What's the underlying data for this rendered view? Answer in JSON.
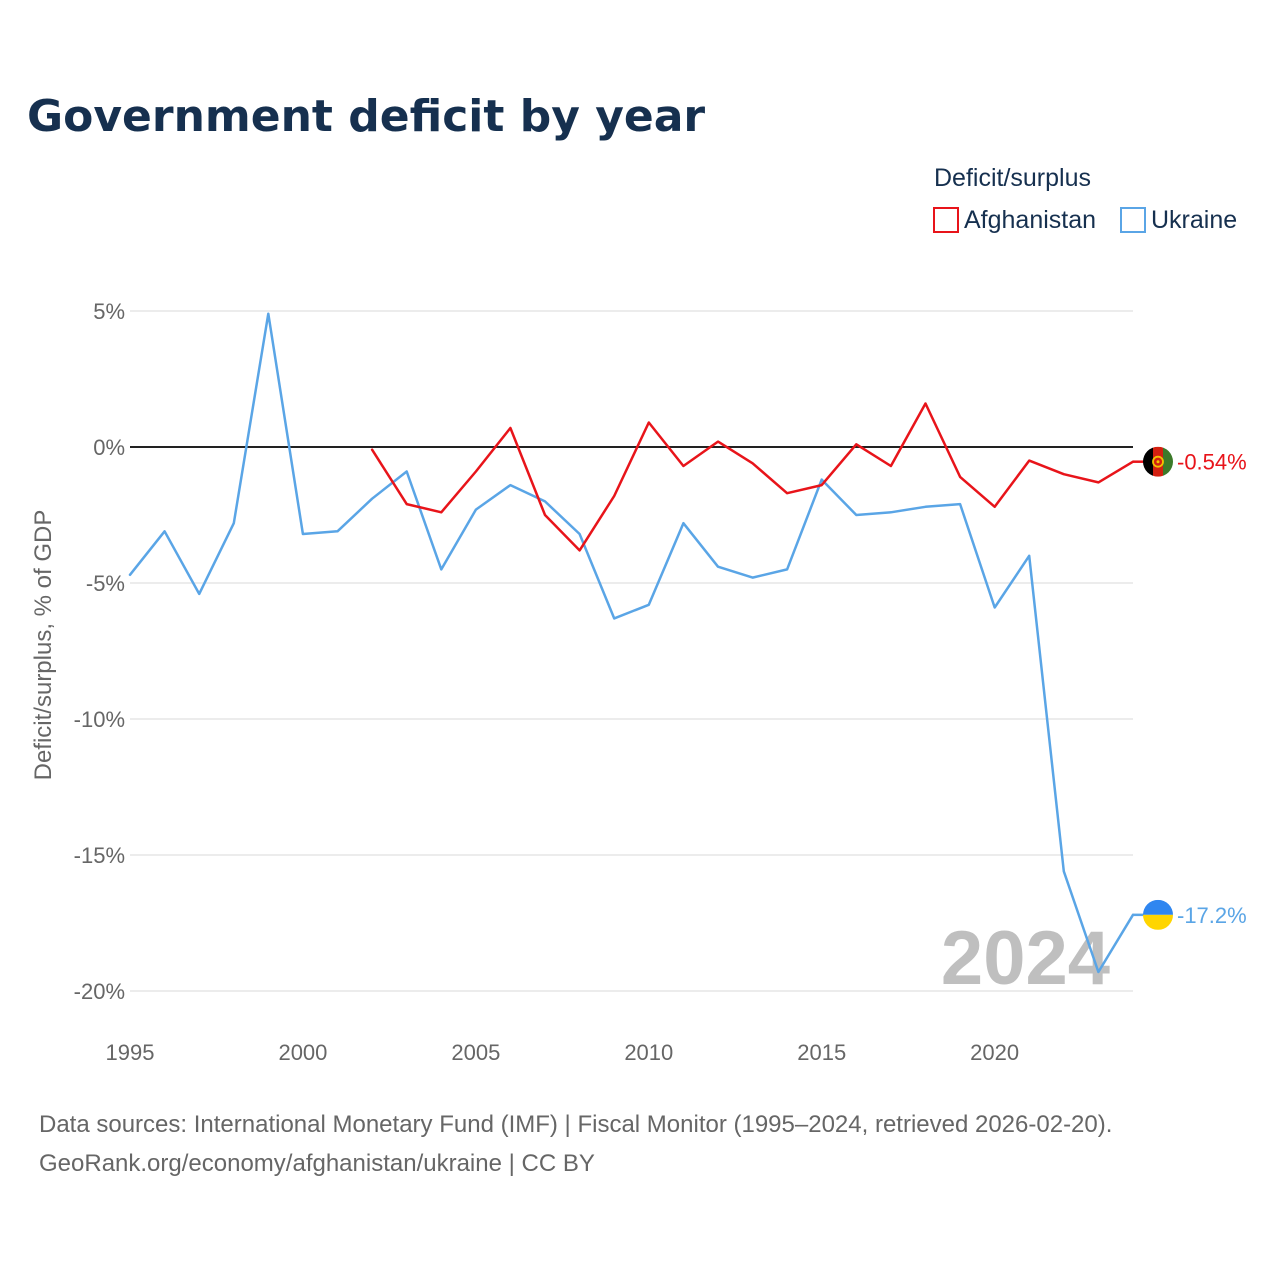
{
  "chart_data": {
    "type": "line",
    "title": "Government deficit by year",
    "legend_title": "Deficit/surplus",
    "legend_position": "top-right",
    "ylabel": "Deficit/surplus, % of GDP",
    "xlabel": "",
    "xlim": [
      1995,
      2024
    ],
    "ylim": [
      -20,
      5
    ],
    "x_ticks": [
      1995,
      2000,
      2005,
      2010,
      2015,
      2020
    ],
    "y_ticks": [
      5,
      0,
      -5,
      -10,
      -15,
      -20
    ],
    "y_tick_labels": [
      "5%",
      "0%",
      "-5%",
      "-10%",
      "-15%",
      "-20%"
    ],
    "grid": true,
    "zero_line": true,
    "highlight_year": "2024",
    "series": [
      {
        "name": "Afghanistan",
        "color": "#e8141a",
        "end_label": "-0.54%",
        "flag": "flag-afghanistan",
        "x": [
          2002,
          2003,
          2004,
          2005,
          2006,
          2007,
          2008,
          2009,
          2010,
          2011,
          2012,
          2013,
          2014,
          2015,
          2016,
          2017,
          2018,
          2019,
          2020,
          2021,
          2022,
          2023,
          2024
        ],
        "values": [
          -0.1,
          -2.1,
          -2.4,
          -0.9,
          0.7,
          -2.5,
          -3.8,
          -1.8,
          0.9,
          -0.7,
          0.2,
          -0.6,
          -1.7,
          -1.4,
          0.1,
          -0.7,
          1.6,
          -1.1,
          -2.2,
          -0.5,
          -1.0,
          -1.3,
          -0.54
        ]
      },
      {
        "name": "Ukraine",
        "color": "#5aa5e6",
        "end_label": "-17.2%",
        "flag": "flag-ukraine",
        "x": [
          1995,
          1996,
          1997,
          1998,
          1999,
          2000,
          2001,
          2002,
          2003,
          2004,
          2005,
          2006,
          2007,
          2008,
          2009,
          2010,
          2011,
          2012,
          2013,
          2014,
          2015,
          2016,
          2017,
          2018,
          2019,
          2020,
          2021,
          2022,
          2023,
          2024
        ],
        "values": [
          -4.7,
          -3.1,
          -5.4,
          -2.8,
          4.9,
          -3.2,
          -3.1,
          -1.9,
          -0.9,
          -4.5,
          -2.3,
          -1.4,
          -2.0,
          -3.2,
          -6.3,
          -5.8,
          -2.8,
          -4.4,
          -4.8,
          -4.5,
          -1.2,
          -2.5,
          -2.4,
          -2.2,
          -2.1,
          -5.9,
          -4.0,
          -15.6,
          -19.3,
          -17.2
        ]
      }
    ]
  },
  "source": {
    "line1": "Data sources: International Monetary Fund (IMF) | Fiscal Monitor (1995–2024, retrieved 2026-02-20).",
    "line2": "GeoRank.org/economy/afghanistan/ukraine | CC BY"
  }
}
